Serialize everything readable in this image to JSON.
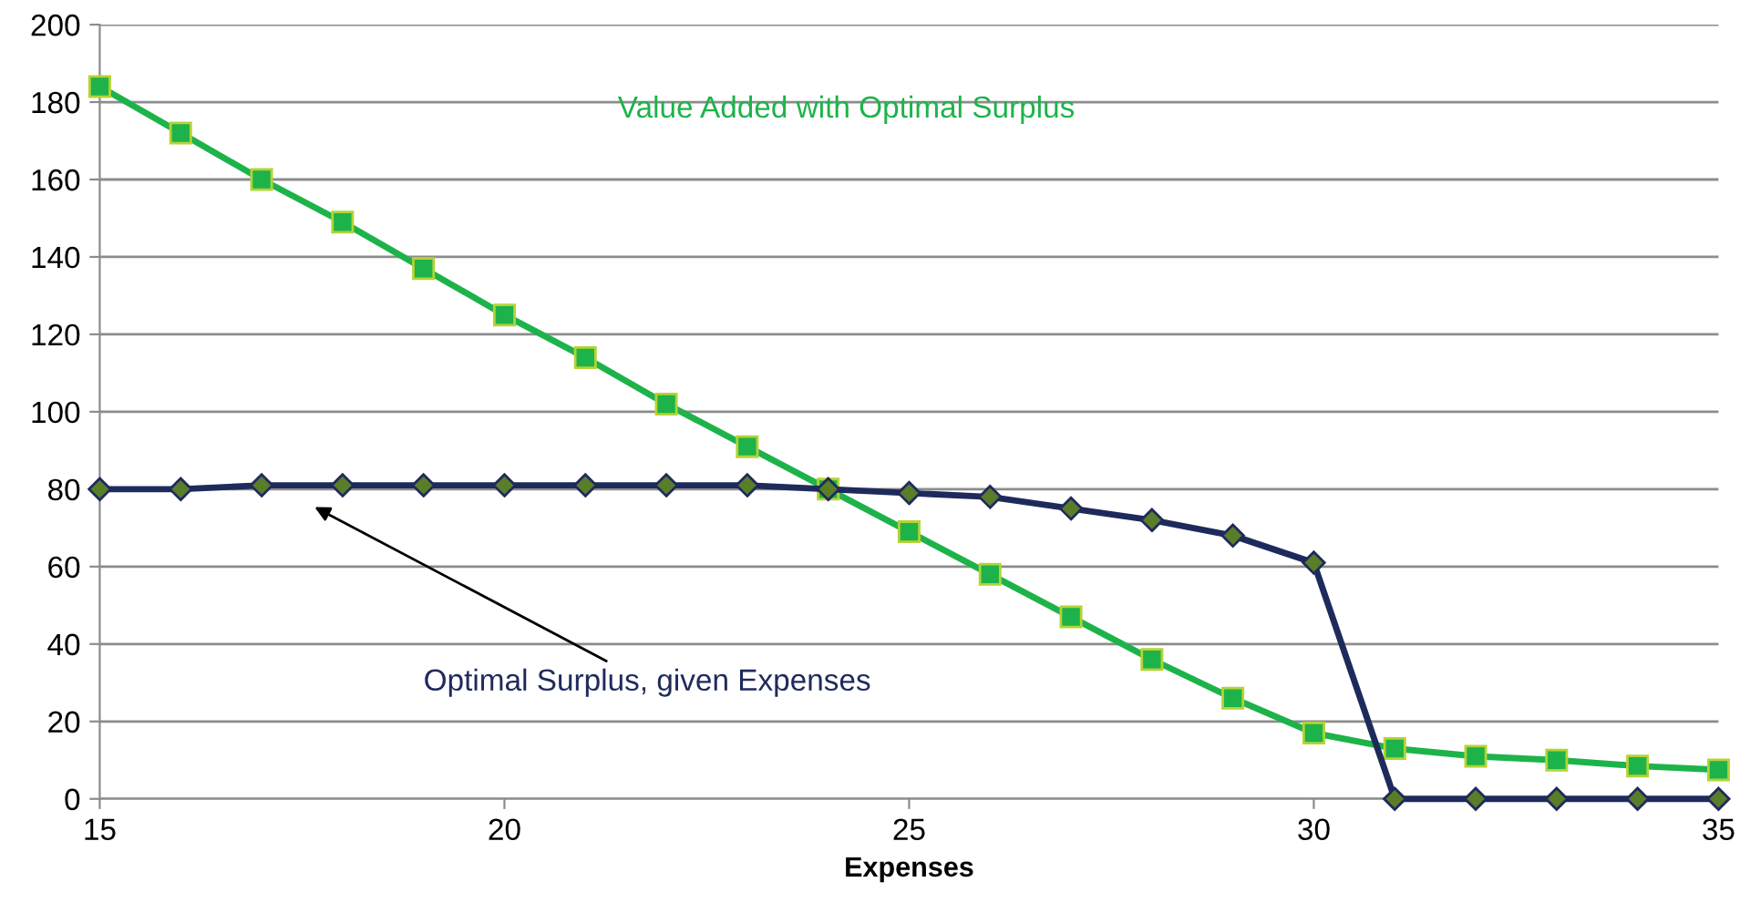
{
  "chart_data": {
    "type": "line",
    "xlabel": "Expenses",
    "x": [
      15,
      16,
      17,
      18,
      19,
      20,
      21,
      22,
      23,
      24,
      25,
      26,
      27,
      28,
      29,
      30,
      31,
      32,
      33,
      34,
      35
    ],
    "series": [
      {
        "name": "Value Added with Optimal Surplus",
        "color": "#1db34a",
        "marker": "square",
        "values": [
          184,
          172,
          160,
          149,
          137,
          125,
          114,
          102,
          91,
          80,
          69,
          58,
          47,
          36,
          26,
          17,
          13,
          11,
          10,
          8.5,
          7.5
        ]
      },
      {
        "name": "Optimal Surplus, given Expenses",
        "color": "#1f2a5c",
        "marker": "diamond",
        "values": [
          80,
          80,
          81,
          81,
          81,
          81,
          81,
          81,
          81,
          80,
          79,
          78,
          75,
          72,
          68,
          61,
          0,
          0,
          0,
          0,
          0
        ]
      }
    ],
    "xlim": [
      15,
      35
    ],
    "xticks": [
      15,
      20,
      25,
      30,
      35
    ],
    "ylim": [
      0,
      200
    ],
    "yticks": [
      0,
      20,
      40,
      60,
      80,
      100,
      120,
      140,
      160,
      180,
      200
    ],
    "grid": "y",
    "legend": false,
    "line_style": "solid"
  }
}
